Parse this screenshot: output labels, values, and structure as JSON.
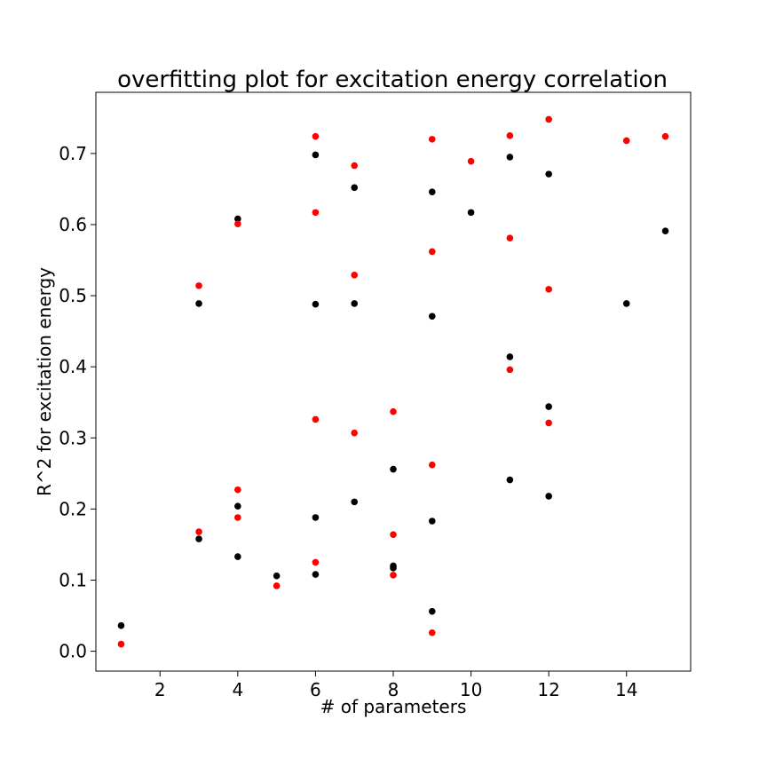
{
  "chart_data": {
    "type": "scatter",
    "title": "overfitting plot for excitation energy correlation",
    "xlabel": "# of parameters",
    "ylabel": "R^2 for excitation energy",
    "xlim": [
      0.35,
      15.65
    ],
    "ylim": [
      -0.028,
      0.786
    ],
    "xticks": [
      2,
      4,
      6,
      8,
      10,
      12,
      14
    ],
    "yticks": [
      0.0,
      0.1,
      0.2,
      0.3,
      0.4,
      0.5,
      0.6,
      0.7
    ],
    "xtick_labels": [
      "2",
      "4",
      "6",
      "8",
      "10",
      "12",
      "14"
    ],
    "ytick_labels": [
      "0.0",
      "0.1",
      "0.2",
      "0.3",
      "0.4",
      "0.5",
      "0.6",
      "0.7"
    ],
    "grid": false,
    "series": [
      {
        "color": "#000000",
        "points": [
          [
            1,
            0.036
          ],
          [
            3,
            0.158
          ],
          [
            3,
            0.489
          ],
          [
            4,
            0.608
          ],
          [
            4,
            0.204
          ],
          [
            4,
            0.133
          ],
          [
            5,
            0.106
          ],
          [
            6,
            0.698
          ],
          [
            6,
            0.488
          ],
          [
            6,
            0.188
          ],
          [
            6,
            0.108
          ],
          [
            7,
            0.652
          ],
          [
            7,
            0.489
          ],
          [
            7,
            0.21
          ],
          [
            8,
            0.256
          ],
          [
            8,
            0.12
          ],
          [
            8,
            0.117
          ],
          [
            9,
            0.646
          ],
          [
            9,
            0.471
          ],
          [
            9,
            0.183
          ],
          [
            9,
            0.056
          ],
          [
            10,
            0.617
          ],
          [
            11,
            0.695
          ],
          [
            11,
            0.414
          ],
          [
            11,
            0.241
          ],
          [
            12,
            0.671
          ],
          [
            12,
            0.344
          ],
          [
            12,
            0.218
          ],
          [
            14,
            0.489
          ],
          [
            15,
            0.591
          ]
        ]
      },
      {
        "color": "#ff0000",
        "points": [
          [
            1,
            0.01
          ],
          [
            3,
            0.514
          ],
          [
            3,
            0.168
          ],
          [
            4,
            0.601
          ],
          [
            4,
            0.227
          ],
          [
            4,
            0.188
          ],
          [
            5,
            0.092
          ],
          [
            6,
            0.724
          ],
          [
            6,
            0.617
          ],
          [
            6,
            0.326
          ],
          [
            6,
            0.125
          ],
          [
            7,
            0.683
          ],
          [
            7,
            0.529
          ],
          [
            7,
            0.307
          ],
          [
            8,
            0.337
          ],
          [
            8,
            0.164
          ],
          [
            8,
            0.107
          ],
          [
            9,
            0.72
          ],
          [
            9,
            0.562
          ],
          [
            9,
            0.262
          ],
          [
            9,
            0.026
          ],
          [
            10,
            0.689
          ],
          [
            11,
            0.725
          ],
          [
            11,
            0.581
          ],
          [
            11,
            0.396
          ],
          [
            12,
            0.748
          ],
          [
            12,
            0.509
          ],
          [
            12,
            0.321
          ],
          [
            14,
            0.718
          ],
          [
            15,
            0.724
          ]
        ]
      }
    ]
  }
}
